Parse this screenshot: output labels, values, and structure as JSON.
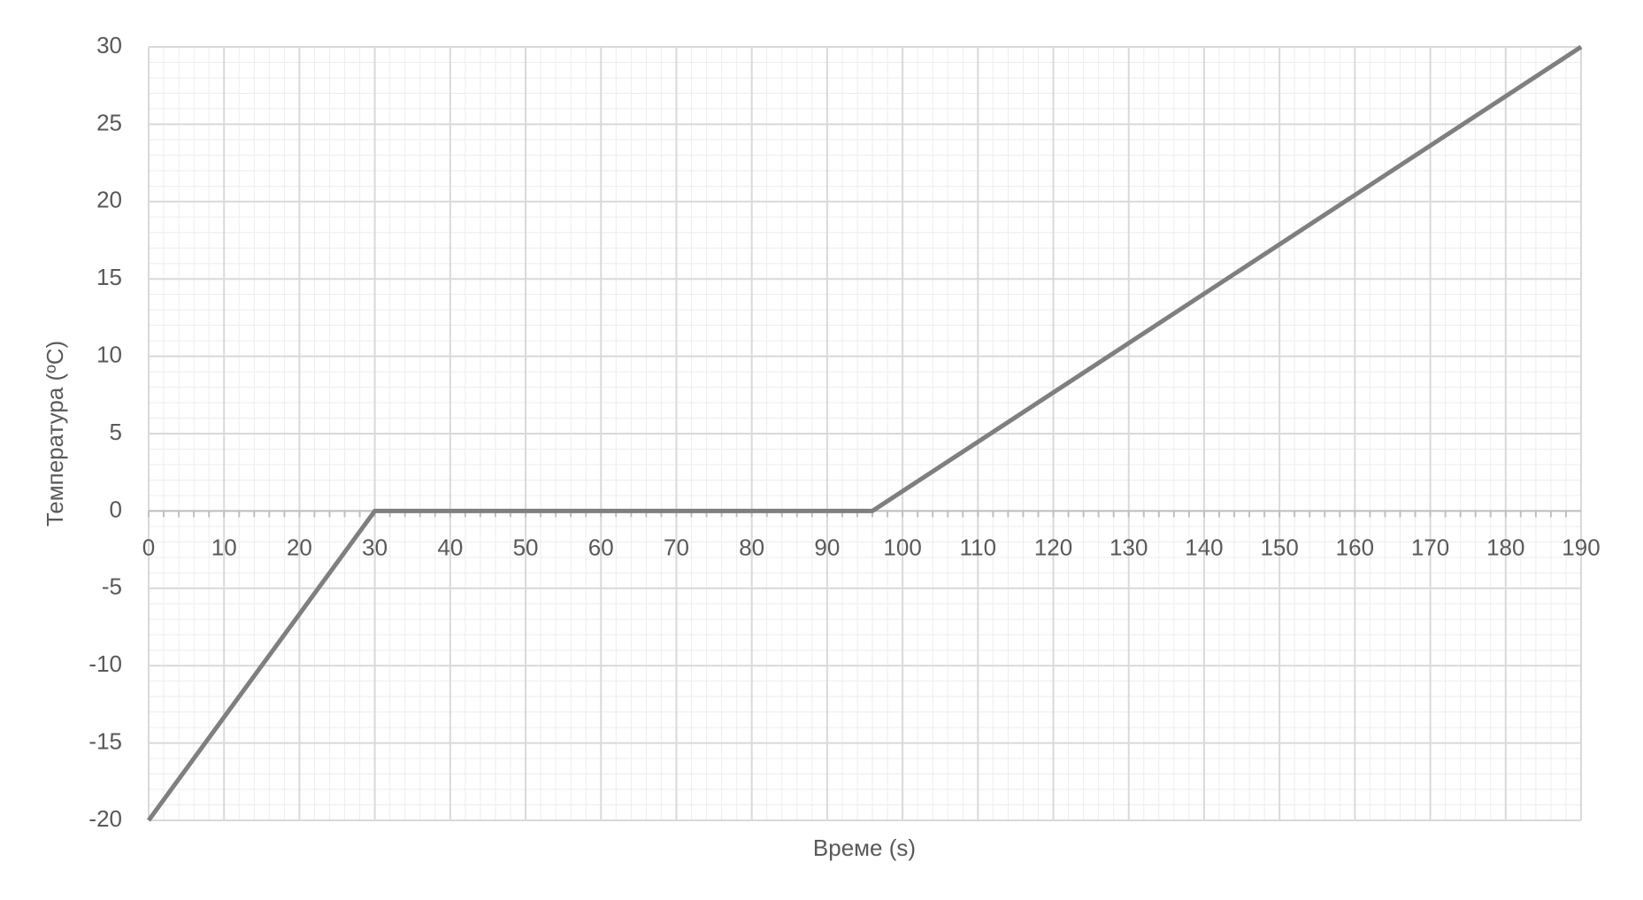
{
  "chart_data": {
    "type": "line",
    "x_label": "Време (s)",
    "y_label": "Температура (ºC)",
    "series": [
      {
        "color": "#7f7f7f",
        "x": [
          0,
          30,
          96,
          190
        ],
        "values": [
          -20,
          0,
          0,
          30
        ]
      }
    ],
    "xlim": [
      0,
      190
    ],
    "xticks": [
      0,
      10,
      20,
      30,
      40,
      50,
      60,
      70,
      80,
      90,
      100,
      110,
      120,
      130,
      140,
      150,
      160,
      170,
      180,
      190
    ],
    "ylim": [
      -20,
      30
    ],
    "yticks": [
      -20,
      -15,
      -10,
      -5,
      0,
      5,
      10,
      15,
      20,
      25,
      30
    ],
    "grid": true
  }
}
